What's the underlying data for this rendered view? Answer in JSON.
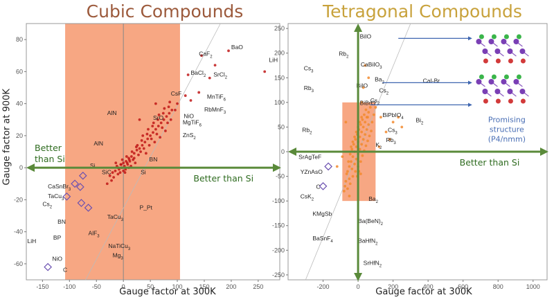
{
  "colors": {
    "highlight": "#f7a783",
    "arrow": "#5a8a3a",
    "cubic_points": "#c01818",
    "tetragonal_points": "#f28a2e",
    "diamond": "#6a4fb0",
    "promo_text": "#4a6fb5"
  },
  "chart_data": [
    {
      "type": "scatter",
      "title": "Cubic Compounds",
      "xlabel": "Gauge factor at 300K",
      "ylabel": "Gauge factor at 900K",
      "xlim": [
        -180,
        290
      ],
      "ylim": [
        -70,
        90
      ],
      "xticks": [
        -150,
        -100,
        -50,
        0,
        50,
        100,
        150,
        200,
        250
      ],
      "yticks": [
        -60,
        -40,
        -20,
        0,
        20,
        40,
        60,
        80
      ],
      "grid": false,
      "highlight_region": {
        "x": [
          -108,
          105
        ]
      },
      "arrow_labels": {
        "left": [
          "Better",
          "than Si"
        ],
        "right": "Better than Si"
      },
      "labels": [
        {
          "text": "CaF",
          "sub": "2",
          "x": 140,
          "y": 70
        },
        {
          "text": "BaO",
          "x": 200,
          "y": 74
        },
        {
          "text": "LiH",
          "x": 270,
          "y": 66
        },
        {
          "text": "BaCl",
          "sub": "2",
          "x": 125,
          "y": 58
        },
        {
          "text": "SrCl",
          "sub": "2",
          "x": 167,
          "y": 57
        },
        {
          "text": "CsF",
          "x": 88,
          "y": 45
        },
        {
          "text": "MnTiF",
          "sub": "6",
          "x": 155,
          "y": 43
        },
        {
          "text": "RbMnF",
          "sub": "3",
          "x": 150,
          "y": 35
        },
        {
          "text": "SrO",
          "x": 55,
          "y": 30
        },
        {
          "text": "NiO",
          "x": 112,
          "y": 31
        },
        {
          "text": "MgTiF",
          "sub": "6",
          "x": 110,
          "y": 27
        },
        {
          "text": "ZnS",
          "sub": "2",
          "x": 110,
          "y": 19
        },
        {
          "text": "AlN",
          "x": -30,
          "y": 33
        },
        {
          "text": "AlN",
          "x": -55,
          "y": 14
        },
        {
          "text": "BN",
          "x": 48,
          "y": 4
        },
        {
          "text": "Si",
          "x": -62,
          "y": 0
        },
        {
          "text": "SiC",
          "x": -40,
          "y": -4
        },
        {
          "text": "Si",
          "x": 32,
          "y": -4
        },
        {
          "text": "CaSnBr",
          "sub": "3",
          "x": -140,
          "y": -13
        },
        {
          "text": "TaCu",
          "sub": "3",
          "x": -140,
          "y": -19
        },
        {
          "text": "Cs",
          "sub": "2",
          "x": -150,
          "y": -24
        },
        {
          "text": "BN",
          "x": -122,
          "y": -35
        },
        {
          "text": "BP",
          "x": -130,
          "y": -45
        },
        {
          "text": "LiH",
          "x": -178,
          "y": -47
        },
        {
          "text": "AlF",
          "sub": "3",
          "x": -65,
          "y": -42
        },
        {
          "text": "P_Pt",
          "x": 30,
          "y": -26
        },
        {
          "text": "TaCu",
          "sub": "3",
          "x": -30,
          "y": -32
        },
        {
          "text": "NaTiCu",
          "sub": "3",
          "x": -28,
          "y": -50
        },
        {
          "text": "Mg",
          "sub": "3",
          "x": -20,
          "y": -56
        },
        {
          "text": "NiO",
          "x": -132,
          "y": -58
        },
        {
          "text": "C",
          "x": -112,
          "y": -65
        }
      ],
      "points": [
        [
          -10,
          0
        ],
        [
          -5,
          2
        ],
        [
          0,
          3
        ],
        [
          5,
          4
        ],
        [
          10,
          6
        ],
        [
          15,
          7
        ],
        [
          20,
          9
        ],
        [
          25,
          11
        ],
        [
          30,
          12
        ],
        [
          35,
          14
        ],
        [
          40,
          16
        ],
        [
          45,
          18
        ],
        [
          50,
          20
        ],
        [
          55,
          22
        ],
        [
          60,
          24
        ],
        [
          65,
          26
        ],
        [
          70,
          28
        ],
        [
          75,
          30
        ],
        [
          80,
          32
        ],
        [
          85,
          34
        ],
        [
          90,
          36
        ],
        [
          -20,
          -3
        ],
        [
          -15,
          -2
        ],
        [
          -12,
          1
        ],
        [
          -8,
          -1
        ],
        [
          -3,
          0
        ],
        [
          2,
          1
        ],
        [
          8,
          2
        ],
        [
          12,
          4
        ],
        [
          18,
          5
        ],
        [
          22,
          3
        ],
        [
          28,
          8
        ],
        [
          32,
          10
        ],
        [
          38,
          12
        ],
        [
          42,
          9
        ],
        [
          48,
          14
        ],
        [
          52,
          18
        ],
        [
          58,
          16
        ],
        [
          62,
          21
        ],
        [
          68,
          19
        ],
        [
          72,
          25
        ],
        [
          78,
          23
        ],
        [
          82,
          28
        ],
        [
          88,
          30
        ],
        [
          -25,
          -5
        ],
        [
          -18,
          -6
        ],
        [
          -10,
          -4
        ],
        [
          -6,
          -3
        ],
        [
          4,
          -1
        ],
        [
          10,
          0
        ],
        [
          14,
          1
        ],
        [
          -2,
          5
        ],
        [
          6,
          7
        ],
        [
          16,
          10
        ],
        [
          24,
          13
        ],
        [
          34,
          17
        ],
        [
          44,
          21
        ],
        [
          54,
          26
        ],
        [
          64,
          30
        ],
        [
          74,
          34
        ],
        [
          84,
          38
        ],
        [
          0,
          -2
        ],
        [
          3,
          -3
        ],
        [
          -4,
          2
        ],
        [
          7,
          3
        ],
        [
          11,
          5
        ],
        [
          -14,
          3
        ],
        [
          20,
          6
        ],
        [
          26,
          14
        ],
        [
          36,
          20
        ],
        [
          46,
          24
        ],
        [
          56,
          28
        ],
        [
          66,
          33
        ],
        [
          76,
          37
        ],
        [
          86,
          41
        ],
        [
          96,
          36
        ],
        [
          100,
          40
        ],
        [
          115,
          45
        ],
        [
          125,
          42
        ],
        [
          140,
          47
        ],
        [
          145,
          70
        ],
        [
          170,
          64
        ],
        [
          195,
          73
        ],
        [
          262,
          60
        ],
        [
          120,
          58
        ],
        [
          160,
          56
        ],
        [
          60,
          40
        ],
        [
          30,
          30
        ],
        [
          -30,
          -10
        ],
        [
          -22,
          -8
        ]
      ],
      "diamonds": [
        [
          -75,
          -5
        ],
        [
          -80,
          -12
        ],
        [
          -90,
          -10
        ],
        [
          -78,
          -22
        ],
        [
          -65,
          -25
        ],
        [
          -105,
          -18
        ],
        [
          -140,
          -62
        ]
      ]
    },
    {
      "type": "scatter",
      "title": "Tetragonal Compounds",
      "xlabel": "Gauge factor at 300K",
      "ylabel": "",
      "xlim": [
        -400,
        1080
      ],
      "ylim": [
        -260,
        260
      ],
      "xticks": [
        -200,
        0,
        200,
        400,
        600,
        800,
        1000
      ],
      "yticks": [
        -250,
        -200,
        -150,
        -100,
        -50,
        0,
        50,
        100,
        150,
        200,
        250
      ],
      "grid": false,
      "highlight_region": {
        "x": [
          -90,
          100
        ],
        "y": [
          -100,
          100
        ]
      },
      "arrow_labels": {
        "right": "Better than Si"
      },
      "inset_caption": [
        "Promising",
        "structure",
        "(P4/nmm)"
      ],
      "labels": [
        {
          "text": "BiIO",
          "x": 10,
          "y": 230
        },
        {
          "text": "Rb",
          "sub": "2",
          "x": -110,
          "y": 195
        },
        {
          "text": "Cs",
          "sub": "3",
          "x": -310,
          "y": 165
        },
        {
          "text": "CaBiIO",
          "sub": "3",
          "x": 15,
          "y": 173
        },
        {
          "text": "Ba",
          "sub": "2",
          "x": 95,
          "y": 143
        },
        {
          "text": "Rb",
          "sub": "3",
          "x": -310,
          "y": 125
        },
        {
          "text": "Cs",
          "sub": "2",
          "x": 120,
          "y": 120
        },
        {
          "text": "CaI-Br",
          "x": 370,
          "y": 140
        },
        {
          "text": "BiIO",
          "x": -10,
          "y": 130
        },
        {
          "text": "Cs",
          "sub": "2",
          "x": 70,
          "y": 100
        },
        {
          "text": "BiBrO",
          "x": 10,
          "y": 95
        },
        {
          "text": "BiPbIO",
          "sub": "4",
          "x": 140,
          "y": 70
        },
        {
          "text": "Bi",
          "sub": "2",
          "x": 330,
          "y": 60
        },
        {
          "text": "Rb",
          "sub": "2",
          "x": -320,
          "y": 40
        },
        {
          "text": "Cs",
          "sub": "3",
          "x": 170,
          "y": 40
        },
        {
          "text": "Rb",
          "sub": "3",
          "x": 160,
          "y": 20
        },
        {
          "text": "K",
          "sub": "2",
          "x": 100,
          "y": 10
        },
        {
          "text": "SrAgTeF",
          "x": -340,
          "y": -15
        },
        {
          "text": "YZnAsO",
          "x": -330,
          "y": -45
        },
        {
          "text": "C",
          "x": -240,
          "y": -75
        },
        {
          "text": "CsK",
          "sub": "2",
          "x": -330,
          "y": -95
        },
        {
          "text": "Ba",
          "sub": "2",
          "x": 60,
          "y": -100
        },
        {
          "text": "KMgSb",
          "x": -260,
          "y": -130
        },
        {
          "text": "Ba(BeN)",
          "sub": "2",
          "x": 0,
          "y": -145
        },
        {
          "text": "BaSnF",
          "sub": "4",
          "x": -260,
          "y": -180
        },
        {
          "text": "BaHfN",
          "sub": "2",
          "x": 0,
          "y": -185
        },
        {
          "text": "SrHfN",
          "sub": "2",
          "x": 30,
          "y": -230
        }
      ],
      "points": [
        [
          -60,
          -40
        ],
        [
          -50,
          -30
        ],
        [
          -40,
          -20
        ],
        [
          -30,
          -10
        ],
        [
          -20,
          0
        ],
        [
          -10,
          10
        ],
        [
          0,
          20
        ],
        [
          10,
          30
        ],
        [
          20,
          40
        ],
        [
          30,
          50
        ],
        [
          40,
          60
        ],
        [
          50,
          70
        ],
        [
          60,
          80
        ],
        [
          70,
          90
        ],
        [
          -55,
          -20
        ],
        [
          -45,
          -5
        ],
        [
          -35,
          5
        ],
        [
          -25,
          15
        ],
        [
          -15,
          25
        ],
        [
          -5,
          35
        ],
        [
          5,
          45
        ],
        [
          15,
          55
        ],
        [
          25,
          65
        ],
        [
          35,
          75
        ],
        [
          45,
          85
        ],
        [
          55,
          70
        ],
        [
          -70,
          -60
        ],
        [
          -65,
          -45
        ],
        [
          -50,
          -55
        ],
        [
          -35,
          -35
        ],
        [
          -20,
          -25
        ],
        [
          -10,
          -15
        ],
        [
          0,
          -5
        ],
        [
          10,
          5
        ],
        [
          20,
          15
        ],
        [
          30,
          25
        ],
        [
          40,
          35
        ],
        [
          50,
          45
        ],
        [
          60,
          55
        ],
        [
          -80,
          -80
        ],
        [
          -75,
          -70
        ],
        [
          -60,
          -75
        ],
        [
          -45,
          -65
        ],
        [
          -30,
          -50
        ],
        [
          -15,
          -40
        ],
        [
          0,
          -30
        ],
        [
          15,
          -20
        ],
        [
          25,
          -8
        ],
        [
          35,
          2
        ],
        [
          45,
          12
        ],
        [
          55,
          22
        ],
        [
          65,
          32
        ],
        [
          75,
          42
        ],
        [
          -40,
          10
        ],
        [
          -30,
          20
        ],
        [
          -20,
          30
        ],
        [
          -10,
          40
        ],
        [
          0,
          50
        ],
        [
          10,
          60
        ],
        [
          20,
          70
        ],
        [
          -5,
          -50
        ],
        [
          5,
          -40
        ],
        [
          15,
          -45
        ],
        [
          80,
          60
        ],
        [
          90,
          75
        ],
        [
          40,
          175
        ],
        [
          60,
          150
        ],
        [
          30,
          130
        ],
        [
          20,
          100
        ],
        [
          100,
          90
        ],
        [
          130,
          70
        ],
        [
          160,
          40
        ],
        [
          180,
          25
        ],
        [
          200,
          60
        ],
        [
          230,
          70
        ],
        [
          250,
          50
        ],
        [
          120,
          10
        ],
        [
          -70,
          60
        ],
        [
          -90,
          -10
        ],
        [
          -120,
          -30
        ],
        [
          -50,
          -90
        ]
      ],
      "diamonds": [
        [
          -200,
          -70
        ],
        [
          -170,
          -30
        ]
      ]
    }
  ]
}
